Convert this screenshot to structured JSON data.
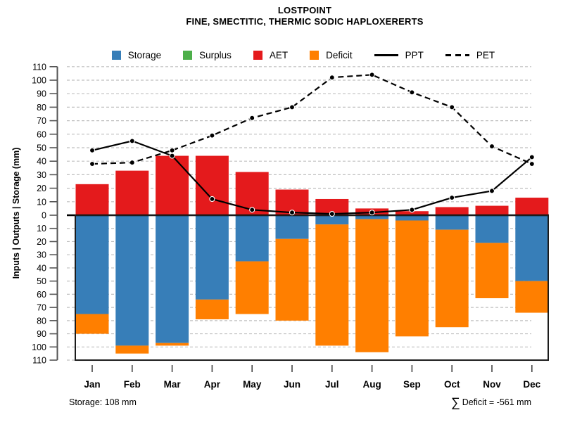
{
  "title": {
    "line1": "LOSTPOINT",
    "line2": "FINE, SMECTITIC, THERMIC SODIC HAPLOXERERTS"
  },
  "legend": {
    "items": [
      {
        "label": "Storage",
        "type": "swatch",
        "color": "#377eb8"
      },
      {
        "label": "Surplus",
        "type": "swatch",
        "color": "#4daf4a"
      },
      {
        "label": "AET",
        "type": "swatch",
        "color": "#e41a1c"
      },
      {
        "label": "Deficit",
        "type": "swatch",
        "color": "#ff7f00"
      },
      {
        "label": "PPT",
        "type": "line-solid",
        "color": "#000000"
      },
      {
        "label": "PET",
        "type": "line-dashed",
        "color": "#000000"
      }
    ]
  },
  "footer": {
    "storage_note": "Storage: 108 mm",
    "sigma": "∑",
    "deficit_note": "Deficit = -561 mm"
  },
  "chart_data": {
    "type": "bar+line water-balance (mirrored axis: inputs above zero, outputs/storage depth below zero)",
    "title": "LOSTPOINT",
    "subtitle": "FINE, SMECTITIC, THERMIC SODIC HAPLOXERERTS",
    "ylabel": "Inputs | Outputs | Storage  (mm)",
    "xlabel": "",
    "categories": [
      "Jan",
      "Feb",
      "Mar",
      "Apr",
      "May",
      "Jun",
      "Jul",
      "Aug",
      "Sep",
      "Oct",
      "Nov",
      "Dec"
    ],
    "y_axis": {
      "tick_step": 10,
      "upper_max": 110,
      "lower_max": 110,
      "units": "mm",
      "style": "mirrored: labels run 110..0..110"
    },
    "grid": "dashed horizontal every 10 mm",
    "legend_position": "top",
    "series": [
      {
        "name": "Storage",
        "plot": "bar",
        "direction": "down",
        "color": "#377eb8",
        "values": [
          75,
          99,
          97,
          64,
          35,
          18,
          7,
          3,
          4,
          11,
          21,
          50
        ]
      },
      {
        "name": "Deficit",
        "plot": "bar",
        "direction": "down",
        "stacked_on": "Storage",
        "color": "#ff7f00",
        "values": [
          15,
          6,
          2,
          15,
          40,
          62,
          92,
          101,
          88,
          74,
          42,
          24
        ]
      },
      {
        "name": "AET",
        "plot": "bar",
        "direction": "up",
        "color": "#e41a1c",
        "values": [
          23,
          33,
          44,
          44,
          32,
          19,
          12,
          5,
          3,
          6,
          7,
          13
        ]
      },
      {
        "name": "Surplus",
        "plot": "bar",
        "direction": "up",
        "stacked_on": "AET",
        "color": "#4daf4a",
        "values": [
          0,
          0,
          0,
          0,
          0,
          0,
          0,
          0,
          0,
          0,
          0,
          0
        ]
      },
      {
        "name": "PPT",
        "plot": "line",
        "style": "solid",
        "color": "#000000",
        "values": [
          48,
          55,
          44,
          12,
          4,
          2,
          1,
          2,
          4,
          13,
          18,
          43
        ]
      },
      {
        "name": "PET",
        "plot": "line",
        "style": "dashed",
        "color": "#000000",
        "values": [
          38,
          39,
          48,
          59,
          72,
          80,
          102,
          104,
          91,
          80,
          51,
          38
        ]
      }
    ],
    "annotations": {
      "storage_capacity_mm": 108,
      "sum_deficit_mm": -561
    }
  }
}
